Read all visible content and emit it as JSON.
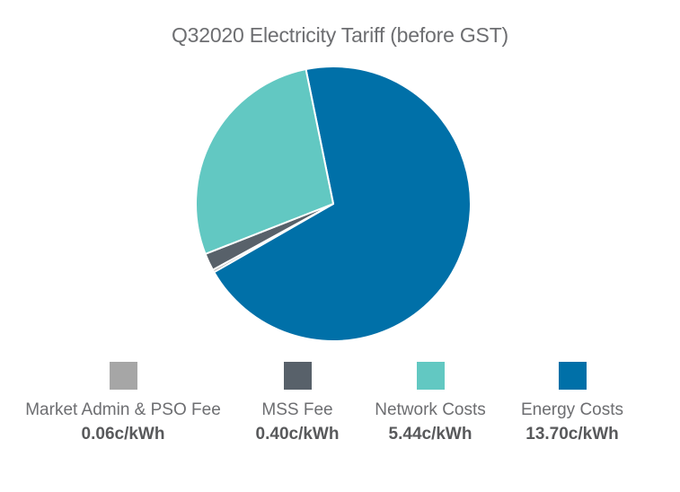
{
  "chart_data": {
    "type": "pie",
    "title": "Q32020 Electricity Tariff (before GST)",
    "unit": "c/kWh",
    "slices": [
      {
        "name": "Market Admin & PSO Fee",
        "value": 0.06,
        "value_label": "0.06c/kWh",
        "color": "#a6a6a6"
      },
      {
        "name": "MSS Fee",
        "value": 0.4,
        "value_label": "0.40c/kWh",
        "color": "#58616a"
      },
      {
        "name": "Network Costs",
        "value": 5.44,
        "value_label": "5.44c/kWh",
        "color": "#62c8c2"
      },
      {
        "name": "Energy Costs",
        "value": 13.7,
        "value_label": "13.70c/kWh",
        "color": "#0070a8"
      }
    ],
    "legend_position": "bottom"
  }
}
